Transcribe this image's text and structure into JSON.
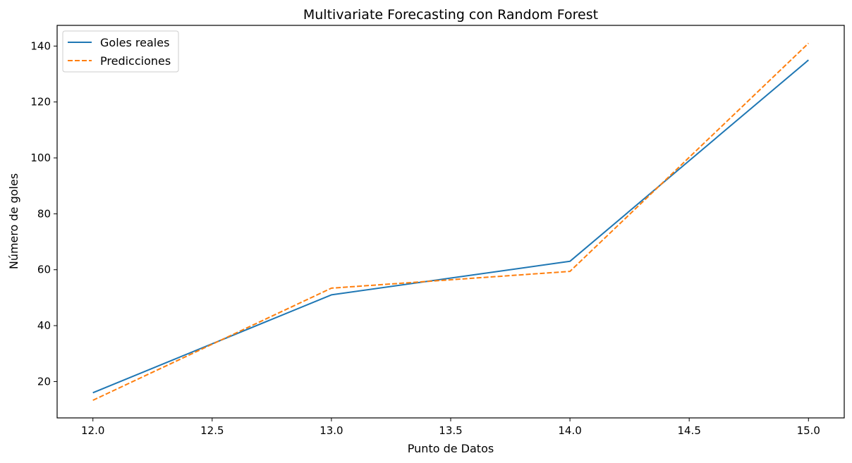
{
  "chart_data": {
    "type": "line",
    "title": "Multivariate Forecasting con Random Forest",
    "xlabel": "Punto de Datos",
    "ylabel": "Número de goles",
    "x": [
      12,
      13,
      14,
      15
    ],
    "xlim": [
      11.85,
      15.15
    ],
    "ylim": [
      7,
      147.4
    ],
    "xticks": [
      12.0,
      12.5,
      13.0,
      13.5,
      14.0,
      14.5,
      15.0
    ],
    "xtick_labels": [
      "12.0",
      "12.5",
      "13.0",
      "13.5",
      "14.0",
      "14.5",
      "15.0"
    ],
    "yticks": [
      20,
      40,
      60,
      80,
      100,
      120,
      140
    ],
    "ytick_labels": [
      "20",
      "40",
      "60",
      "80",
      "100",
      "120",
      "140"
    ],
    "grid": false,
    "legend_position": "top-left",
    "series": [
      {
        "name": "Goles reales",
        "values": [
          16,
          51,
          63,
          135
        ],
        "color": "#1f77b4",
        "style": "solid"
      },
      {
        "name": "Predicciones",
        "values": [
          13.3,
          53.4,
          59.4,
          141
        ],
        "color": "#ff7f0e",
        "style": "dashed"
      }
    ]
  }
}
